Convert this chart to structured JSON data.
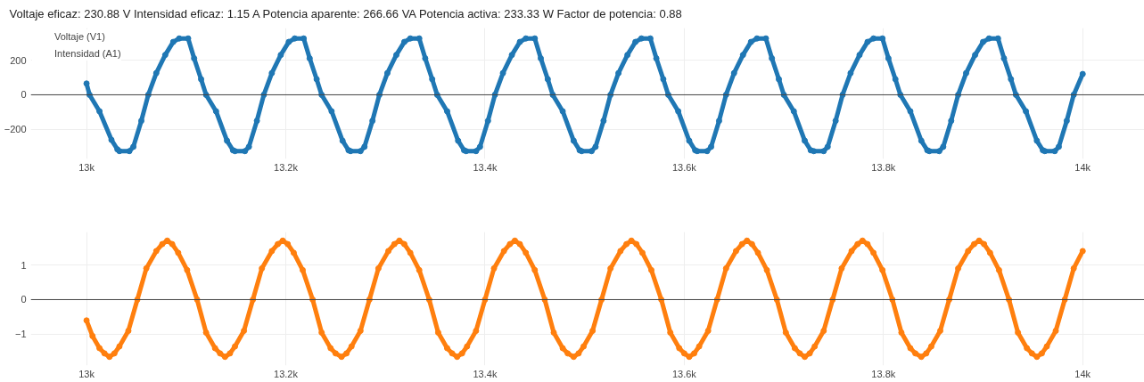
{
  "chart_data": [
    {
      "type": "line",
      "title": "Voltaje eficaz: 230.88 V  Intensidad eficaz: 1.15 A  Potencia aparente: 266.66 VA  Potencia activa: 233.33 W  Factor de potencia: 0.88",
      "xlim": [
        12944,
        14062
      ],
      "xticks": [
        {
          "value": 13000,
          "label": "13k"
        },
        {
          "value": 13200,
          "label": "13.2k"
        },
        {
          "value": 13400,
          "label": "13.4k"
        },
        {
          "value": 13600,
          "label": "13.6k"
        },
        {
          "value": 13800,
          "label": "13.8k"
        },
        {
          "value": 14000,
          "label": "14k"
        }
      ],
      "ylim": [
        -370,
        385
      ],
      "yticks": [
        {
          "value": -200,
          "label": "−200"
        },
        0,
        200
      ],
      "grid": true,
      "legend": "top left",
      "marker": "circle",
      "ref_lines": [
        {
          "axis": "y",
          "value": 0,
          "color": "#444444"
        }
      ],
      "series": [
        {
          "name": "Voltaje (V1)",
          "color": "#1f77b4",
          "x": [
            13000,
            13003,
            13013,
            13025,
            13031,
            13033,
            13043,
            13047,
            13055,
            13062,
            13070,
            13079,
            13087,
            13093,
            13102,
            13108,
            13115,
            13120,
            13130,
            13141,
            13147,
            13149,
            13159,
            13163,
            13171,
            13178,
            13186,
            13195,
            13203,
            13209,
            13218,
            13224,
            13231,
            13236,
            13246,
            13257,
            13263,
            13265,
            13275,
            13279,
            13287,
            13294,
            13302,
            13311,
            13319,
            13325,
            13334,
            13340,
            13347,
            13352,
            13362,
            13373,
            13379,
            13381,
            13391,
            13395,
            13403,
            13410,
            13418,
            13427,
            13435,
            13441,
            13450,
            13456,
            13463,
            13468,
            13478,
            13489,
            13495,
            13497,
            13507,
            13511,
            13519,
            13526,
            13534,
            13543,
            13551,
            13557,
            13566,
            13572,
            13579,
            13584,
            13594,
            13605,
            13611,
            13613,
            13623,
            13627,
            13635,
            13642,
            13650,
            13659,
            13667,
            13673,
            13682,
            13688,
            13695,
            13700,
            13710,
            13721,
            13727,
            13730,
            13740,
            13744,
            13752,
            13759,
            13767,
            13776,
            13784,
            13790,
            13799,
            13805,
            13812,
            13817,
            13827,
            13838,
            13844,
            13846,
            13856,
            13860,
            13868,
            13875,
            13883,
            13892,
            13900,
            13906,
            13915,
            13921,
            13928,
            13933,
            13943,
            13954,
            13960,
            13962,
            13972,
            13976,
            13984,
            13991,
            14000
          ],
          "values": [
            65,
            0,
            -95,
            -260,
            -315,
            -325,
            -325,
            -300,
            -150,
            0,
            125,
            230,
            305,
            325,
            325,
            210,
            90,
            0,
            -95,
            -265,
            -320,
            -325,
            -325,
            -300,
            -150,
            0,
            125,
            230,
            305,
            325,
            325,
            210,
            90,
            0,
            -95,
            -265,
            -320,
            -325,
            -325,
            -300,
            -150,
            0,
            125,
            230,
            305,
            325,
            325,
            210,
            90,
            0,
            -95,
            -265,
            -320,
            -325,
            -325,
            -300,
            -150,
            0,
            125,
            230,
            305,
            325,
            325,
            210,
            90,
            0,
            -95,
            -265,
            -320,
            -325,
            -325,
            -300,
            -150,
            0,
            125,
            230,
            305,
            325,
            325,
            210,
            90,
            0,
            -95,
            -265,
            -320,
            -325,
            -325,
            -300,
            -150,
            0,
            125,
            230,
            305,
            325,
            325,
            210,
            90,
            0,
            -95,
            -265,
            -320,
            -325,
            -325,
            -300,
            -150,
            0,
            125,
            230,
            305,
            325,
            325,
            210,
            90,
            0,
            -95,
            -265,
            -320,
            -325,
            -325,
            -300,
            -150,
            0,
            125,
            230,
            305,
            325,
            325,
            210,
            90,
            0,
            -95,
            -265,
            -320,
            -325,
            -325,
            -300,
            -150,
            0,
            120
          ]
        }
      ]
    },
    {
      "type": "line",
      "xlim": [
        12944,
        14062
      ],
      "xticks": [
        {
          "value": 13000,
          "label": "13k"
        },
        {
          "value": 13200,
          "label": "13.2k"
        },
        {
          "value": 13400,
          "label": "13.4k"
        },
        {
          "value": 13600,
          "label": "13.6k"
        },
        {
          "value": 13800,
          "label": "13.8k"
        },
        {
          "value": 14000,
          "label": "14k"
        }
      ],
      "ylim": [
        -1.9,
        1.95
      ],
      "yticks": [
        {
          "value": -1,
          "label": "−1"
        },
        0,
        1
      ],
      "grid": true,
      "marker": "circle",
      "ref_lines": [
        {
          "axis": "y",
          "value": 0,
          "color": "#444444"
        }
      ],
      "series": [
        {
          "name": "Intensidad (A1)",
          "color": "#ff7f0e",
          "x": [
            13000,
            13006,
            13013,
            13018,
            13023,
            13028,
            13033,
            13042,
            13051,
            13060,
            13070,
            13076,
            13081,
            13086,
            13092,
            13101,
            13111,
            13120,
            13129,
            13134,
            13139,
            13144,
            13149,
            13158,
            13167,
            13176,
            13186,
            13192,
            13197,
            13202,
            13208,
            13217,
            13227,
            13236,
            13245,
            13250,
            13256,
            13261,
            13266,
            13275,
            13284,
            13293,
            13303,
            13309,
            13314,
            13319,
            13325,
            13334,
            13344,
            13353,
            13362,
            13367,
            13372,
            13377,
            13382,
            13391,
            13400,
            13409,
            13419,
            13425,
            13430,
            13435,
            13441,
            13450,
            13460,
            13469,
            13478,
            13483,
            13489,
            13494,
            13499,
            13508,
            13517,
            13526,
            13536,
            13542,
            13547,
            13552,
            13558,
            13567,
            13577,
            13586,
            13595,
            13600,
            13605,
            13610,
            13615,
            13624,
            13633,
            13642,
            13652,
            13658,
            13663,
            13668,
            13674,
            13683,
            13693,
            13702,
            13711,
            13716,
            13721,
            13726,
            13731,
            13740,
            13749,
            13758,
            13768,
            13774,
            13779,
            13784,
            13790,
            13799,
            13809,
            13818,
            13827,
            13832,
            13838,
            13843,
            13848,
            13857,
            13866,
            13875,
            13885,
            13891,
            13896,
            13901,
            13907,
            13916,
            13926,
            13935,
            13944,
            13949,
            13954,
            13959,
            13964,
            13973,
            13982,
            13991,
            14000
          ],
          "values": [
            -0.6,
            -1.05,
            -1.4,
            -1.55,
            -1.65,
            -1.55,
            -1.35,
            -0.9,
            0,
            0.9,
            1.4,
            1.6,
            1.7,
            1.6,
            1.35,
            0.85,
            0,
            -0.95,
            -1.4,
            -1.55,
            -1.65,
            -1.55,
            -1.35,
            -0.9,
            0,
            0.9,
            1.4,
            1.6,
            1.7,
            1.6,
            1.35,
            0.85,
            0,
            -0.95,
            -1.4,
            -1.55,
            -1.65,
            -1.55,
            -1.35,
            -0.9,
            0,
            0.9,
            1.4,
            1.6,
            1.7,
            1.6,
            1.35,
            0.85,
            0,
            -0.95,
            -1.4,
            -1.55,
            -1.65,
            -1.55,
            -1.35,
            -0.9,
            0,
            0.9,
            1.4,
            1.6,
            1.7,
            1.6,
            1.35,
            0.85,
            0,
            -0.95,
            -1.4,
            -1.55,
            -1.65,
            -1.55,
            -1.35,
            -0.9,
            0,
            0.9,
            1.4,
            1.6,
            1.7,
            1.6,
            1.35,
            0.85,
            0,
            -0.95,
            -1.4,
            -1.55,
            -1.65,
            -1.55,
            -1.35,
            -0.9,
            0,
            0.9,
            1.4,
            1.6,
            1.7,
            1.6,
            1.35,
            0.85,
            0,
            -0.95,
            -1.4,
            -1.55,
            -1.65,
            -1.55,
            -1.35,
            -0.9,
            0,
            0.9,
            1.4,
            1.6,
            1.7,
            1.6,
            1.35,
            0.85,
            0,
            -0.95,
            -1.4,
            -1.55,
            -1.65,
            -1.55,
            -1.35,
            -0.9,
            0,
            0.9,
            1.4,
            1.6,
            1.7,
            1.6,
            1.35,
            0.85,
            0,
            -0.95,
            -1.4,
            -1.55,
            -1.65,
            -1.55,
            -1.35,
            -0.9,
            0,
            0.9,
            1.4
          ]
        }
      ]
    }
  ]
}
